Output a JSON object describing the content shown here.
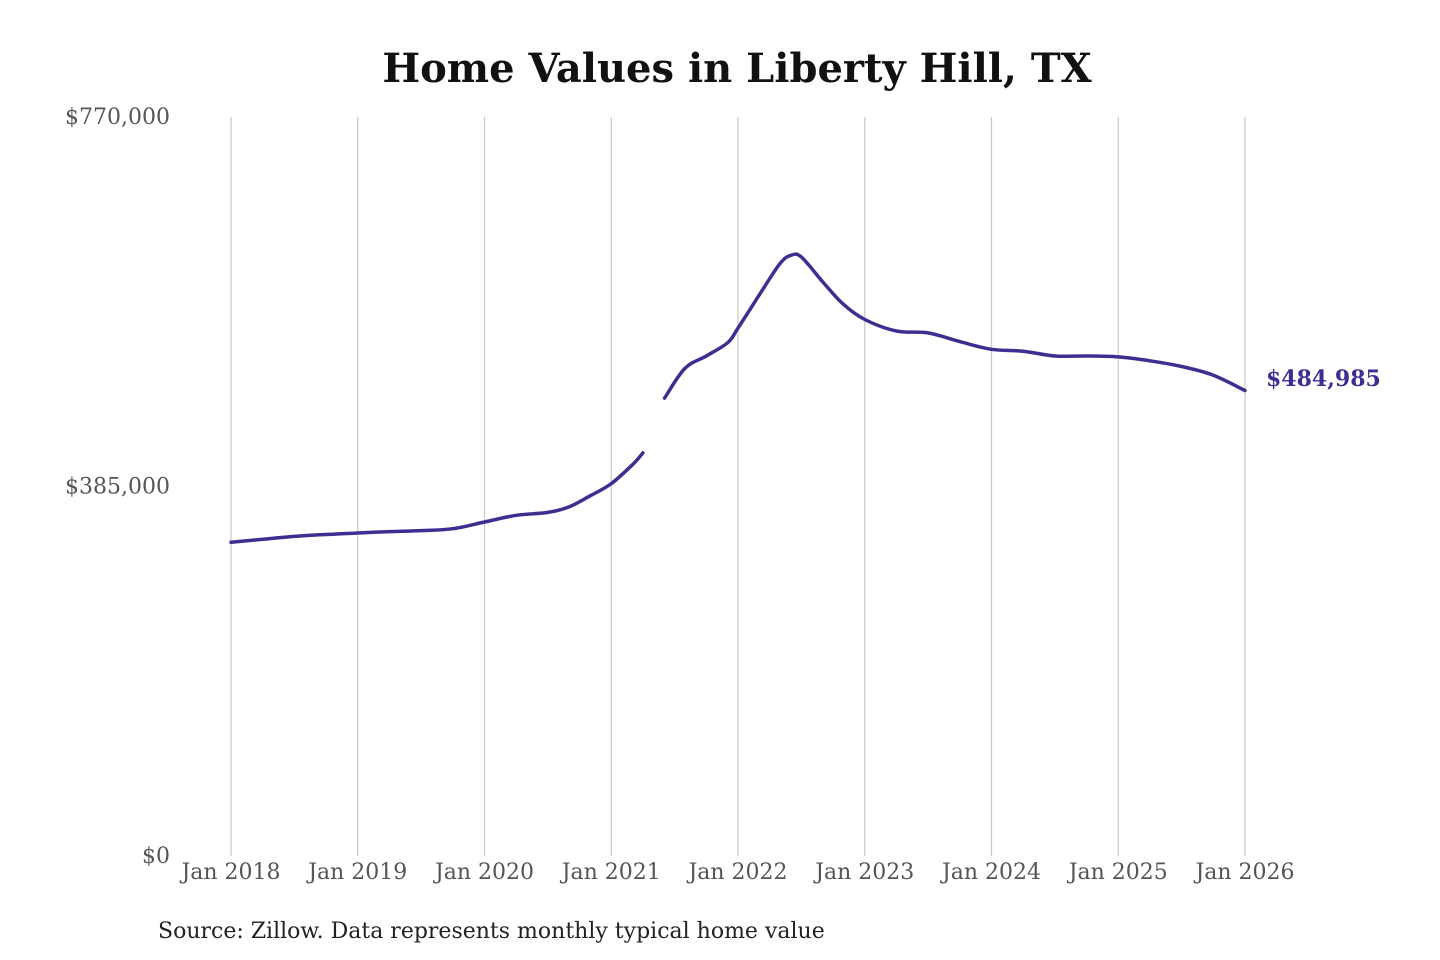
{
  "chart_data": {
    "type": "line",
    "title": "Home Values in Liberty Hill, TX",
    "xlabel": "",
    "ylabel": "",
    "ylim": [
      0,
      770000
    ],
    "yticks": [
      {
        "value": 0,
        "label": "$0"
      },
      {
        "value": 385000,
        "label": "$385,000"
      },
      {
        "value": 770000,
        "label": "$770,000"
      }
    ],
    "xlim": [
      2018.0,
      2026.0
    ],
    "xticks": [
      {
        "value": 2018,
        "label": "Jan 2018"
      },
      {
        "value": 2019,
        "label": "Jan 2019"
      },
      {
        "value": 2020,
        "label": "Jan 2020"
      },
      {
        "value": 2021,
        "label": "Jan 2021"
      },
      {
        "value": 2022,
        "label": "Jan 2022"
      },
      {
        "value": 2023,
        "label": "Jan 2023"
      },
      {
        "value": 2024,
        "label": "Jan 2024"
      },
      {
        "value": 2025,
        "label": "Jan 2025"
      },
      {
        "value": 2026,
        "label": "Jan 2026"
      }
    ],
    "grid": {
      "vertical": true,
      "horizontal": false
    },
    "line_color": "#3b2f91",
    "end_label": "$484,985",
    "source_note": "Source: Zillow. Data represents monthly typical home value",
    "series": [
      {
        "segments": [
          [
            [
              2018.0,
              327000
            ],
            [
              2018.25,
              330000
            ],
            [
              2018.5,
              333000
            ],
            [
              2018.75,
              335000
            ],
            [
              2019.0,
              336500
            ],
            [
              2019.25,
              338000
            ],
            [
              2019.5,
              339000
            ],
            [
              2019.75,
              341000
            ],
            [
              2020.0,
              348000
            ],
            [
              2020.25,
              355000
            ],
            [
              2020.5,
              358000
            ],
            [
              2020.67,
              364000
            ],
            [
              2020.83,
              375000
            ],
            [
              2021.0,
              388000
            ],
            [
              2021.17,
              408000
            ],
            [
              2021.25,
              420000
            ]
          ],
          [
            [
              2021.42,
              477000
            ],
            [
              2021.58,
              508000
            ],
            [
              2021.75,
              521000
            ],
            [
              2021.92,
              535000
            ],
            [
              2022.0,
              550000
            ],
            [
              2022.17,
              585000
            ],
            [
              2022.33,
              617000
            ],
            [
              2022.42,
              626000
            ],
            [
              2022.5,
              624000
            ],
            [
              2022.67,
              598000
            ],
            [
              2022.83,
              575000
            ],
            [
              2023.0,
              559000
            ],
            [
              2023.25,
              547000
            ],
            [
              2023.5,
              545000
            ],
            [
              2023.75,
              536000
            ],
            [
              2024.0,
              528000
            ],
            [
              2024.25,
              526000
            ],
            [
              2024.5,
              521000
            ],
            [
              2024.75,
              521000
            ],
            [
              2025.0,
              520000
            ],
            [
              2025.25,
              516000
            ],
            [
              2025.5,
              510000
            ],
            [
              2025.75,
              501000
            ],
            [
              2026.0,
              484985
            ]
          ]
        ]
      }
    ]
  }
}
